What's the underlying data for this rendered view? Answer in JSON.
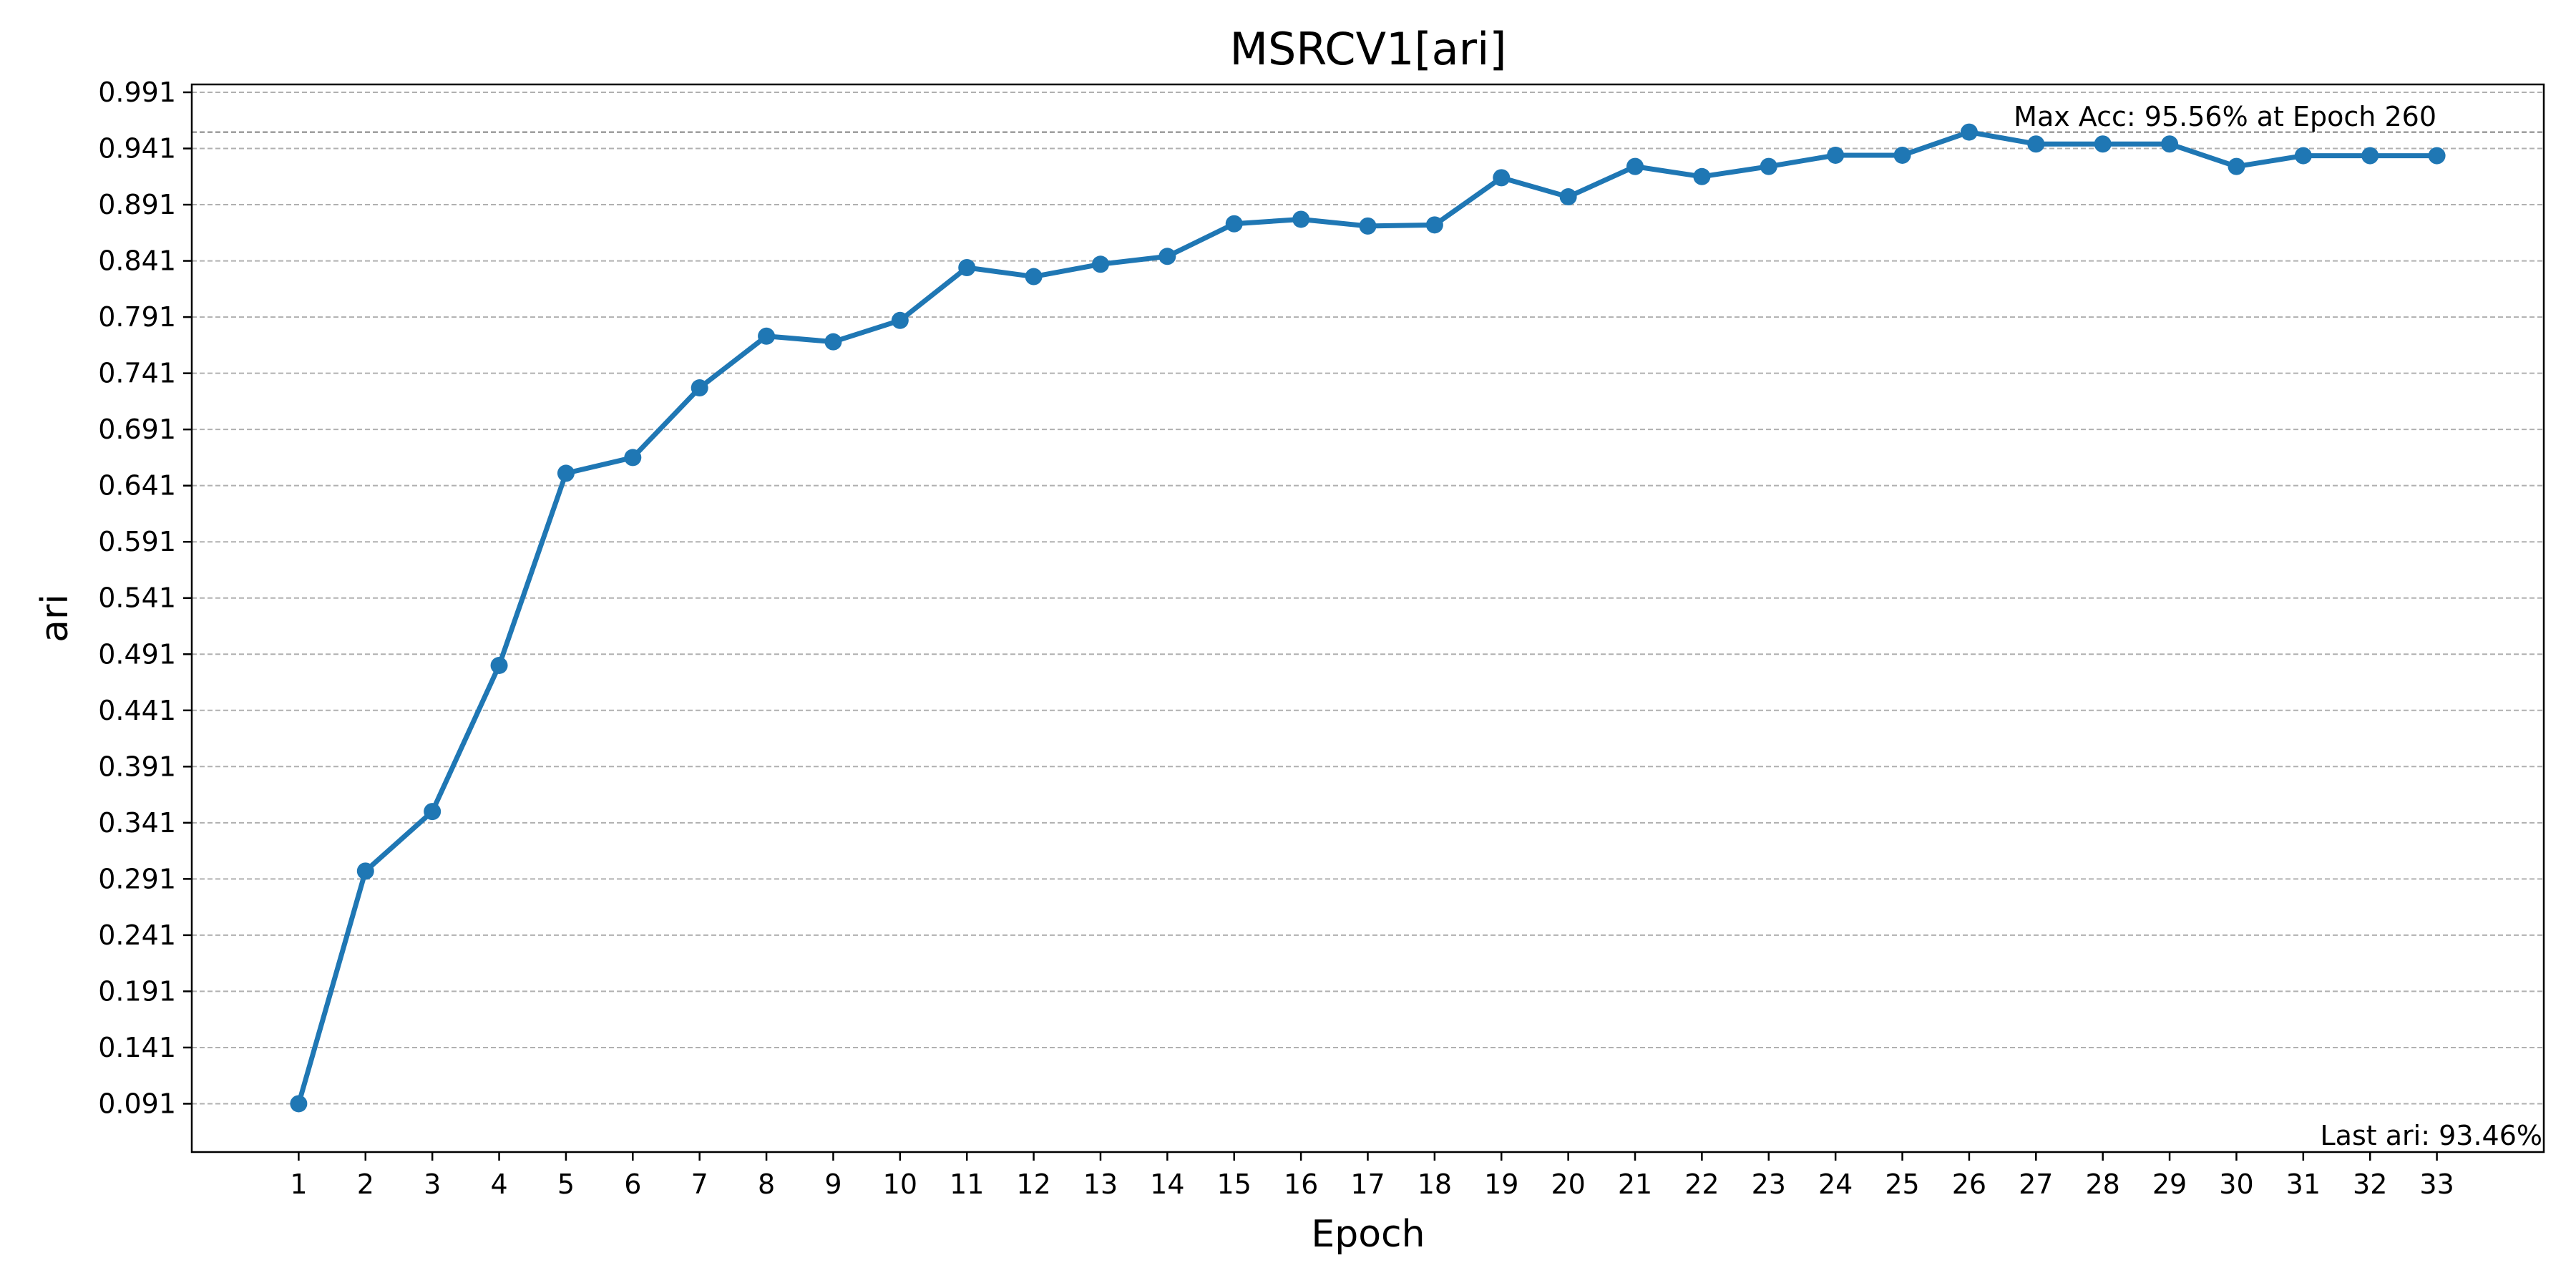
{
  "chart_data": {
    "type": "line",
    "title": "MSRCV1[ari]",
    "xlabel": "Epoch",
    "ylabel": "ari",
    "x": [
      1,
      2,
      3,
      4,
      5,
      6,
      7,
      8,
      9,
      10,
      11,
      12,
      13,
      14,
      15,
      16,
      17,
      18,
      19,
      20,
      21,
      22,
      23,
      24,
      25,
      26,
      27,
      28,
      29,
      30,
      31,
      32,
      33
    ],
    "series": [
      {
        "values": [
          0.091,
          0.298,
          0.351,
          0.481,
          0.652,
          0.666,
          0.728,
          0.774,
          0.769,
          0.788,
          0.835,
          0.827,
          0.838,
          0.845,
          0.874,
          0.878,
          0.872,
          0.873,
          0.915,
          0.898,
          0.925,
          0.916,
          0.925,
          0.935,
          0.935,
          0.9556,
          0.945,
          0.945,
          0.945,
          0.925,
          0.9346,
          0.9346,
          0.9346
        ],
        "color": "#1f77b4"
      }
    ],
    "yticks": [
      "0.091",
      "0.141",
      "0.191",
      "0.241",
      "0.291",
      "0.341",
      "0.391",
      "0.441",
      "0.491",
      "0.541",
      "0.591",
      "0.641",
      "0.691",
      "0.741",
      "0.791",
      "0.841",
      "0.891",
      "0.941",
      "0.991"
    ],
    "xticks": [
      "1",
      "2",
      "3",
      "4",
      "5",
      "6",
      "7",
      "8",
      "9",
      "10",
      "11",
      "12",
      "13",
      "14",
      "15",
      "16",
      "17",
      "18",
      "19",
      "20",
      "21",
      "22",
      "23",
      "24",
      "25",
      "26",
      "27",
      "28",
      "29",
      "30",
      "31",
      "32",
      "33"
    ],
    "ylim": [
      0.048,
      0.998
    ],
    "xlim": [
      -0.6,
      34.6
    ],
    "grid": "horizontal dashed",
    "max_line_value": 0.9556,
    "annotations": {
      "max": "Max Acc: 95.56% at Epoch 260",
      "last": "Last ari: 93.46%"
    }
  }
}
